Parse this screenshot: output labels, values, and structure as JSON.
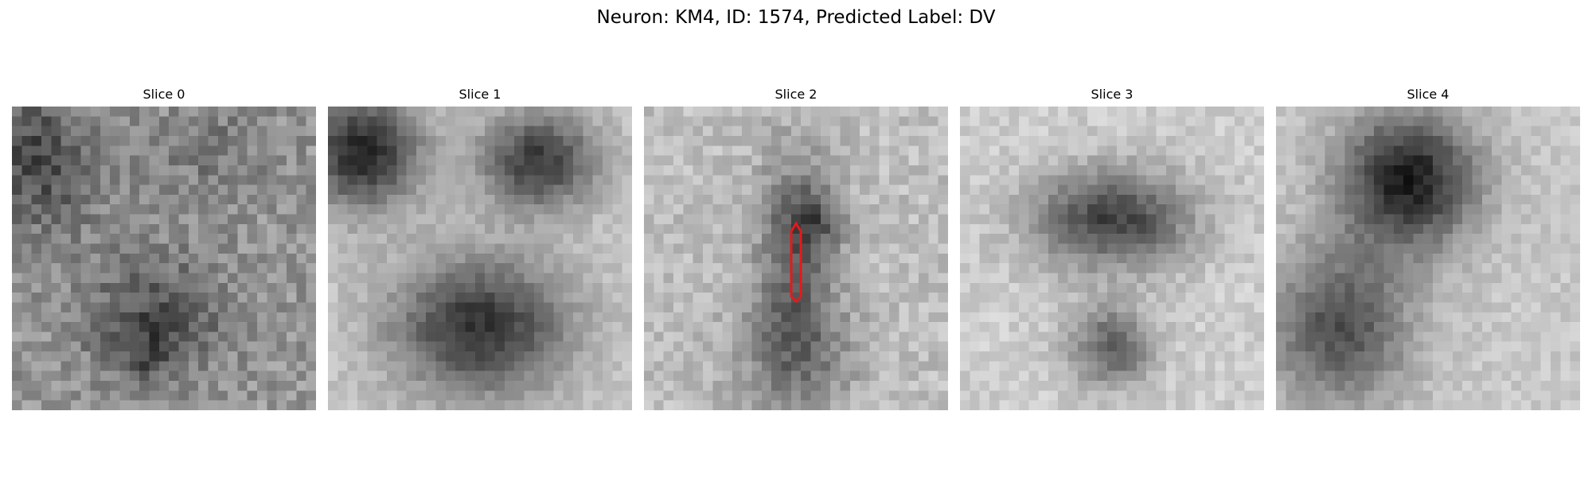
{
  "figure": {
    "title": "Neuron: KM4, ID: 1574, Predicted Label: DV"
  },
  "panels": [
    {
      "title": "Slice 0"
    },
    {
      "title": "Slice 1"
    },
    {
      "title": "Slice 2"
    },
    {
      "title": "Slice 3"
    },
    {
      "title": "Slice 4"
    }
  ],
  "marker": {
    "color": "#e41a1c"
  }
}
